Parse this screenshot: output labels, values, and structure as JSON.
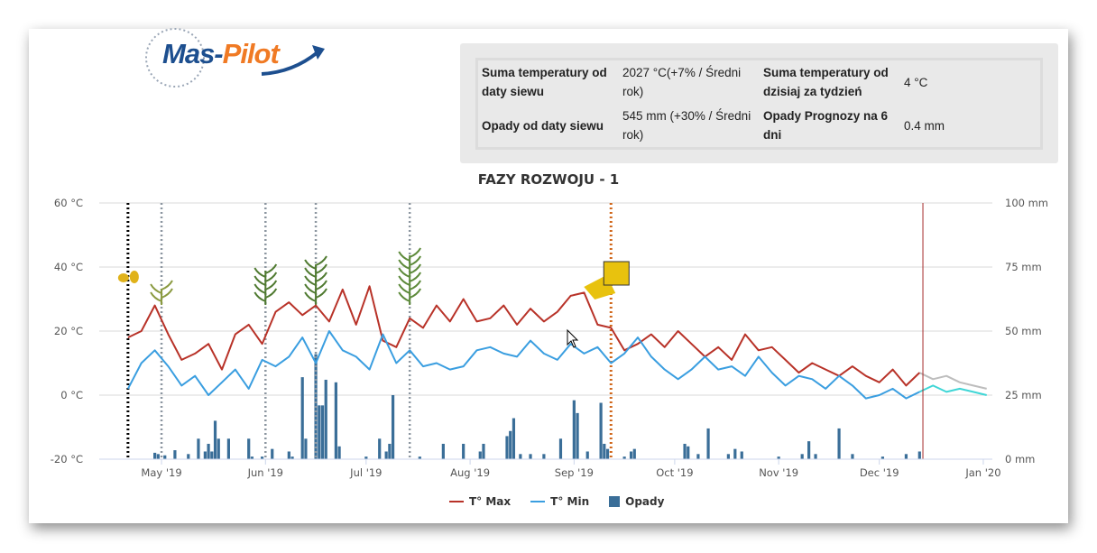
{
  "logo": {
    "text_a": "Mas-",
    "text_b": "Pilot"
  },
  "info": {
    "rows": [
      {
        "k1": "Suma temperatury od daty siewu",
        "v1": "2027 °C(+7% / Średni rok)",
        "k2": "Suma temperatury od dzisiaj za tydzień",
        "v2": "4 °C"
      },
      {
        "k1": "Opady od daty siewu",
        "v1": "545 mm (+30% / Średni rok)",
        "k2": "Opady Prognozy na 6 dni",
        "v2": "0.4 mm"
      }
    ]
  },
  "colors": {
    "tmax": "#b83228",
    "tmin": "#3a9ee0",
    "precip": "#3a6e98",
    "forecast_max": "#bdbdbd",
    "forecast_min": "#3fd6d6"
  },
  "chart_data": {
    "type": "line",
    "title": "FAZY ROZWOJU - 1",
    "y_left": {
      "ticks": [
        60,
        40,
        20,
        0,
        -20
      ],
      "labels": [
        "60 °C",
        "40 °C",
        "20 °C",
        "0 °C",
        "-20 °C"
      ],
      "range": [
        -20,
        60
      ]
    },
    "y_right": {
      "ticks": [
        100,
        75,
        50,
        25,
        0
      ],
      "labels": [
        "100 mm",
        "75 mm",
        "50 mm",
        "25 mm",
        "0 mm"
      ],
      "range": [
        0,
        100
      ]
    },
    "x_ticks": [
      {
        "date": "2019-05-01",
        "label": "May '19"
      },
      {
        "date": "2019-06-01",
        "label": "Jun '19"
      },
      {
        "date": "2019-07-01",
        "label": "Jul '19"
      },
      {
        "date": "2019-08-01",
        "label": "Aug '19"
      },
      {
        "date": "2019-09-01",
        "label": "Sep '19"
      },
      {
        "date": "2019-10-01",
        "label": "Oct '19"
      },
      {
        "date": "2019-11-01",
        "label": "Nov '19"
      },
      {
        "date": "2019-12-01",
        "label": "Dec '19"
      },
      {
        "date": "2020-01-01",
        "label": "Jan '20"
      }
    ],
    "legend": [
      "T° Max",
      "T° Min",
      "Opady"
    ],
    "start": "2019-04-21",
    "step_days": 4,
    "tmax": [
      18,
      20,
      28,
      19,
      11,
      13,
      16,
      8,
      19,
      22,
      16,
      26,
      29,
      25,
      28,
      23,
      33,
      22,
      34,
      17,
      15,
      24,
      21,
      28,
      23,
      30,
      23,
      24,
      28,
      22,
      27,
      23,
      26,
      31,
      32,
      22,
      21,
      14,
      16,
      19,
      15,
      20,
      16,
      12,
      15,
      11,
      19,
      14,
      15,
      11,
      7,
      10,
      8,
      6,
      9,
      6,
      4,
      8,
      3,
      7
    ],
    "tmin": [
      2,
      10,
      14,
      9,
      3,
      6,
      0,
      4,
      8,
      2,
      11,
      9,
      12,
      18,
      10,
      20,
      14,
      12,
      8,
      19,
      10,
      14,
      9,
      10,
      8,
      9,
      14,
      15,
      13,
      12,
      17,
      13,
      11,
      16,
      13,
      15,
      10,
      13,
      18,
      12,
      8,
      5,
      8,
      12,
      8,
      9,
      6,
      12,
      7,
      3,
      6,
      5,
      2,
      6,
      3,
      -1,
      0,
      2,
      -1,
      1
    ],
    "forecast_start": "2019-12-13",
    "forecast_tmax": [
      7,
      5,
      6,
      4,
      3,
      2
    ],
    "forecast_tmin": [
      1,
      3,
      1,
      2,
      1,
      0
    ],
    "precip": [
      [
        "2019-04-29",
        2.5
      ],
      [
        "2019-04-30",
        2
      ],
      [
        "2019-05-02",
        1.5
      ],
      [
        "2019-05-05",
        3.5
      ],
      [
        "2019-05-09",
        2
      ],
      [
        "2019-05-12",
        8
      ],
      [
        "2019-05-14",
        3
      ],
      [
        "2019-05-15",
        6
      ],
      [
        "2019-05-16",
        3
      ],
      [
        "2019-05-17",
        15
      ],
      [
        "2019-05-18",
        8
      ],
      [
        "2019-05-21",
        8
      ],
      [
        "2019-05-27",
        8
      ],
      [
        "2019-05-28",
        1
      ],
      [
        "2019-05-31",
        1
      ],
      [
        "2019-06-03",
        4
      ],
      [
        "2019-06-08",
        3
      ],
      [
        "2019-06-09",
        1
      ],
      [
        "2019-06-12",
        32
      ],
      [
        "2019-06-13",
        8
      ],
      [
        "2019-06-16",
        41
      ],
      [
        "2019-06-17",
        21
      ],
      [
        "2019-06-18",
        21
      ],
      [
        "2019-06-19",
        31
      ],
      [
        "2019-06-22",
        30
      ],
      [
        "2019-06-23",
        5
      ],
      [
        "2019-07-01",
        1
      ],
      [
        "2019-07-05",
        8
      ],
      [
        "2019-07-07",
        3
      ],
      [
        "2019-07-08",
        6
      ],
      [
        "2019-07-09",
        25
      ],
      [
        "2019-07-17",
        1
      ],
      [
        "2019-07-24",
        6
      ],
      [
        "2019-07-30",
        6
      ],
      [
        "2019-08-04",
        3
      ],
      [
        "2019-08-05",
        6
      ],
      [
        "2019-08-12",
        9
      ],
      [
        "2019-08-13",
        11
      ],
      [
        "2019-08-14",
        16
      ],
      [
        "2019-08-16",
        2
      ],
      [
        "2019-08-19",
        2
      ],
      [
        "2019-08-23",
        2
      ],
      [
        "2019-08-28",
        8
      ],
      [
        "2019-09-01",
        23
      ],
      [
        "2019-09-02",
        18
      ],
      [
        "2019-09-05",
        3
      ],
      [
        "2019-09-09",
        22
      ],
      [
        "2019-09-10",
        6
      ],
      [
        "2019-09-11",
        4
      ],
      [
        "2019-09-16",
        1
      ],
      [
        "2019-09-18",
        3
      ],
      [
        "2019-09-19",
        4
      ],
      [
        "2019-10-04",
        6
      ],
      [
        "2019-10-05",
        5
      ],
      [
        "2019-10-08",
        2
      ],
      [
        "2019-10-11",
        12
      ],
      [
        "2019-10-17",
        2
      ],
      [
        "2019-10-19",
        4
      ],
      [
        "2019-10-21",
        3
      ],
      [
        "2019-11-01",
        1
      ],
      [
        "2019-11-08",
        2
      ],
      [
        "2019-11-10",
        7
      ],
      [
        "2019-11-12",
        2
      ],
      [
        "2019-11-19",
        12
      ],
      [
        "2019-11-23",
        2
      ],
      [
        "2019-12-02",
        1
      ],
      [
        "2019-12-09",
        2
      ],
      [
        "2019-12-13",
        3
      ]
    ],
    "phase_lines": [
      {
        "date": "2019-04-21",
        "kind": "sowing",
        "icon": "seed"
      },
      {
        "date": "2019-05-01",
        "kind": "phase",
        "icon": "sprout"
      },
      {
        "date": "2019-06-01",
        "kind": "phase",
        "icon": "young-plant"
      },
      {
        "date": "2019-06-16",
        "kind": "phase",
        "icon": "plant"
      },
      {
        "date": "2019-07-14",
        "kind": "phase",
        "icon": "tall-plant"
      },
      {
        "date": "2019-09-12",
        "kind": "harvest",
        "icon": "combine-harvester"
      }
    ],
    "today": "2019-12-14"
  }
}
